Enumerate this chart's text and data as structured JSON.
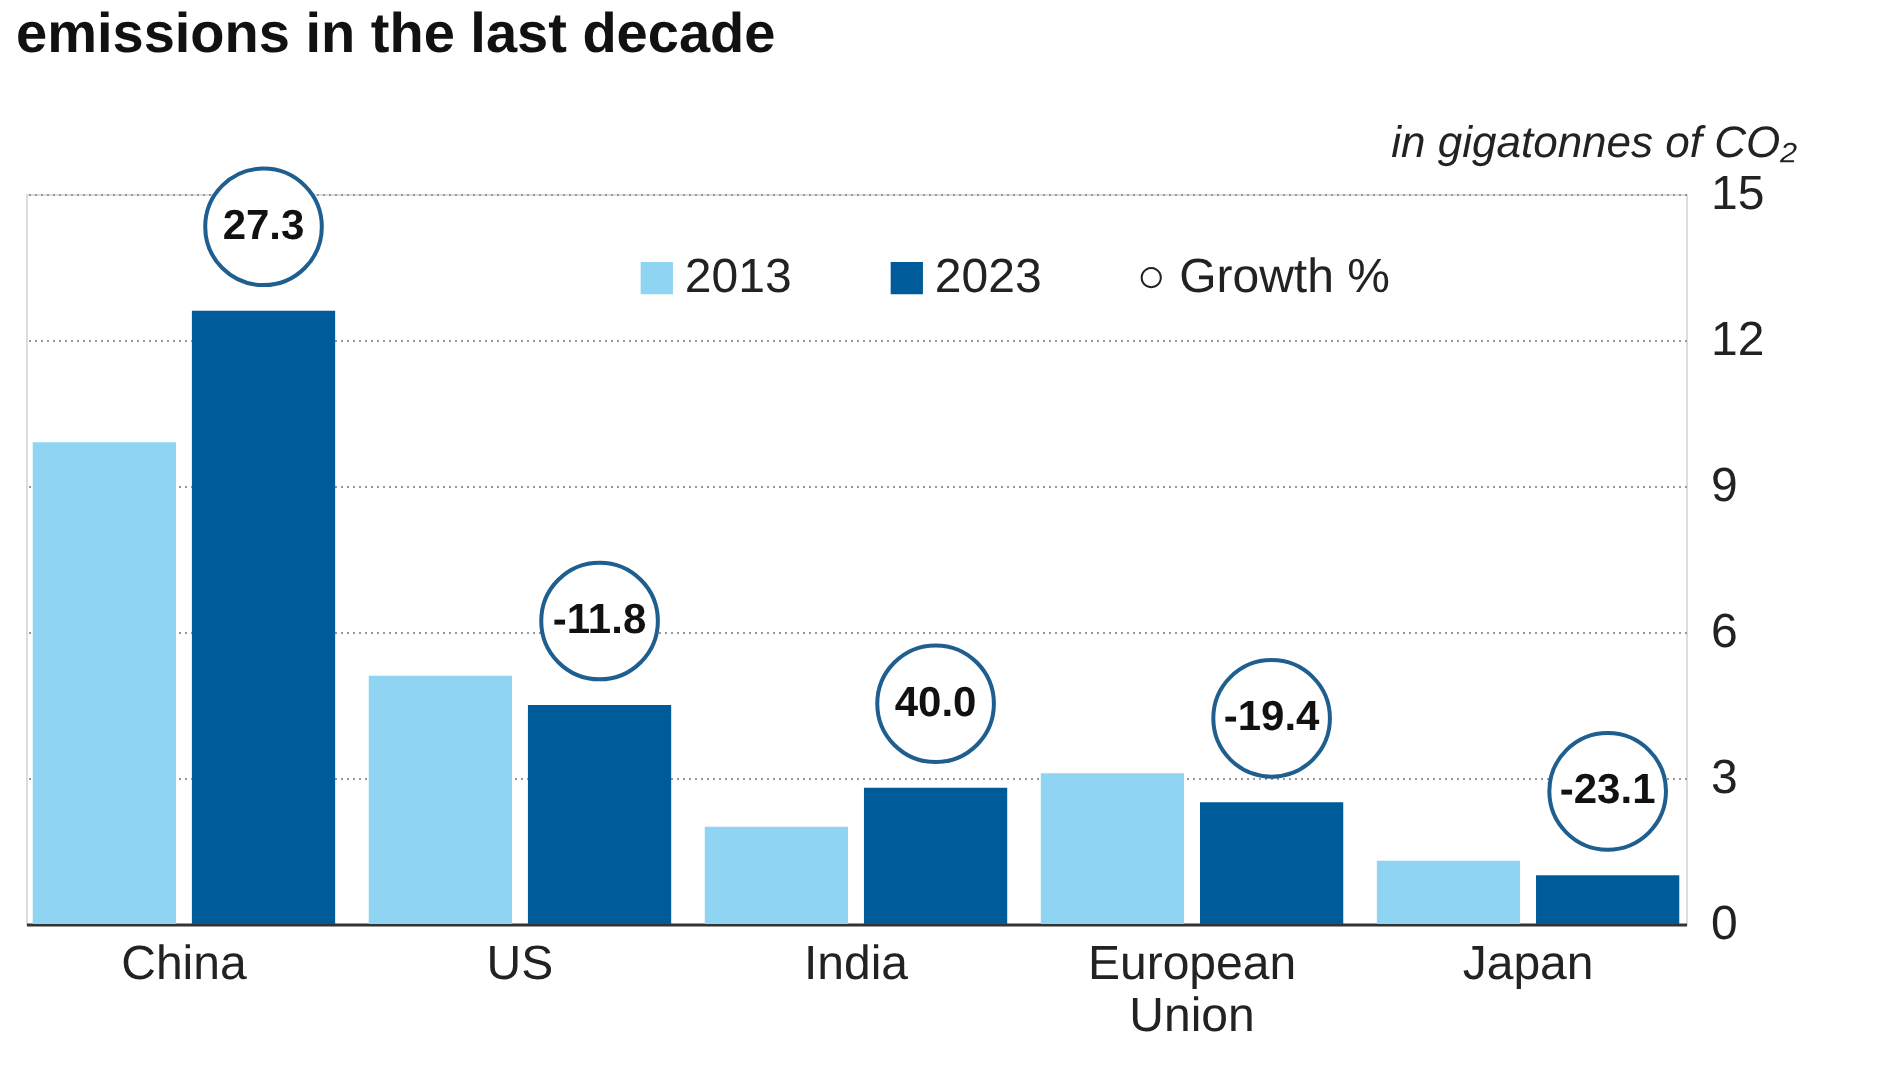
{
  "chart_data": {
    "type": "bar",
    "title": "emissions in the last decade",
    "ylabel": "in gigatonnes of CO₂",
    "categories": [
      "China",
      "US",
      "India",
      "European Union",
      "Japan"
    ],
    "series": [
      {
        "name": "2013",
        "color": "#8fd4f2",
        "values": [
          9.9,
          5.1,
          2.0,
          3.1,
          1.3
        ]
      },
      {
        "name": "2023",
        "color": "#005b9a",
        "values": [
          12.6,
          4.5,
          2.8,
          2.5,
          1.0
        ]
      }
    ],
    "annotations": [
      "27.3",
      "-11.8",
      "40.0",
      "-19.4",
      "-23.1",
      "○ Growth %"
    ],
    "ylim": [
      0,
      15
    ],
    "yticks": [
      0,
      3,
      6,
      9,
      12,
      15
    ],
    "grid": "y",
    "legend": "top"
  }
}
